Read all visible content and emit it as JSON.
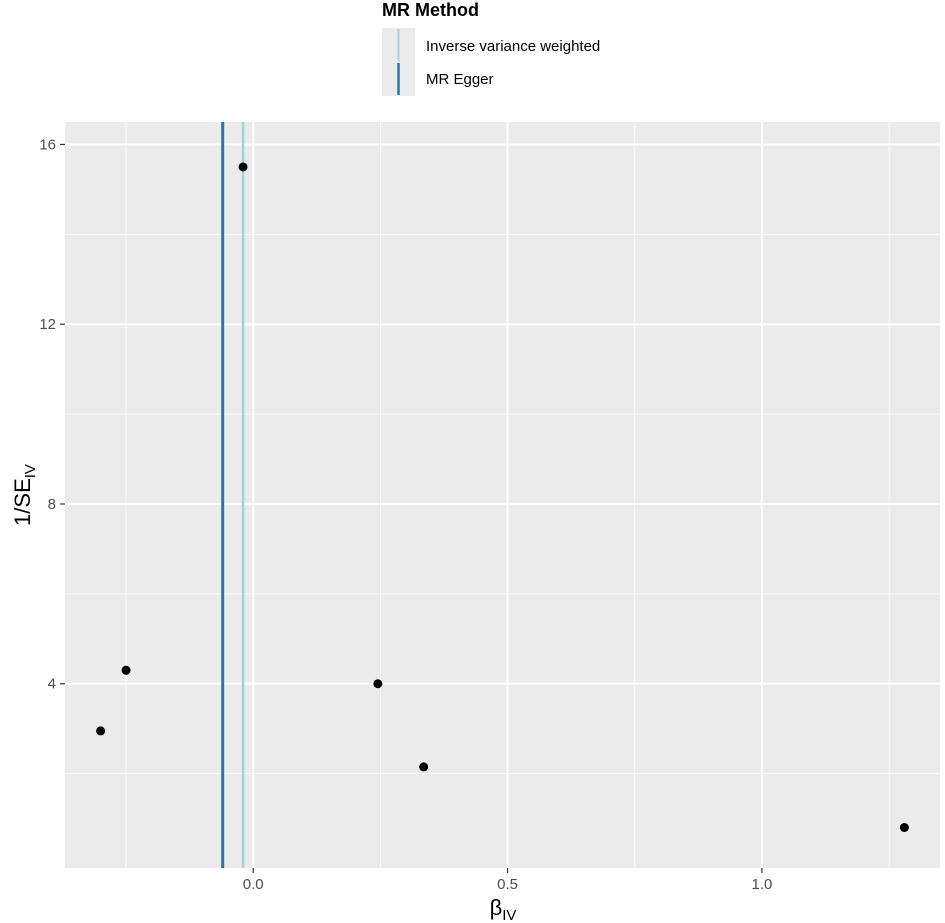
{
  "chart_data": {
    "type": "scatter",
    "xlabel_main": "β",
    "xlabel_sub": "IV",
    "ylabel_main": "1/SE",
    "ylabel_sub": "IV",
    "xlim": [
      -0.37,
      1.35
    ],
    "ylim": [
      -0.1,
      16.5
    ],
    "x_ticks": [
      0.0,
      0.5,
      1.0
    ],
    "x_tick_labels": [
      "0.0",
      "0.5",
      "1.0"
    ],
    "y_ticks": [
      4,
      8,
      12,
      16
    ],
    "y_tick_labels": [
      "4",
      "8",
      "12",
      "16"
    ],
    "grid": true,
    "legend": {
      "title": "MR Method",
      "position": "top",
      "entries": [
        {
          "label": "Inverse variance weighted",
          "color": "#a6cee3"
        },
        {
          "label": "MR Egger",
          "color": "#1f78b4"
        }
      ]
    },
    "vlines": [
      {
        "method": "Inverse variance weighted",
        "x": -0.02,
        "color": "#a6cee3"
      },
      {
        "method": "MR Egger",
        "x": -0.06,
        "color": "#1f78b4"
      }
    ],
    "points": [
      {
        "x": -0.02,
        "y": 15.5
      },
      {
        "x": -0.25,
        "y": 4.3
      },
      {
        "x": -0.3,
        "y": 2.95
      },
      {
        "x": 0.245,
        "y": 4.0
      },
      {
        "x": 0.335,
        "y": 2.15
      },
      {
        "x": 1.28,
        "y": 0.8
      }
    ]
  }
}
